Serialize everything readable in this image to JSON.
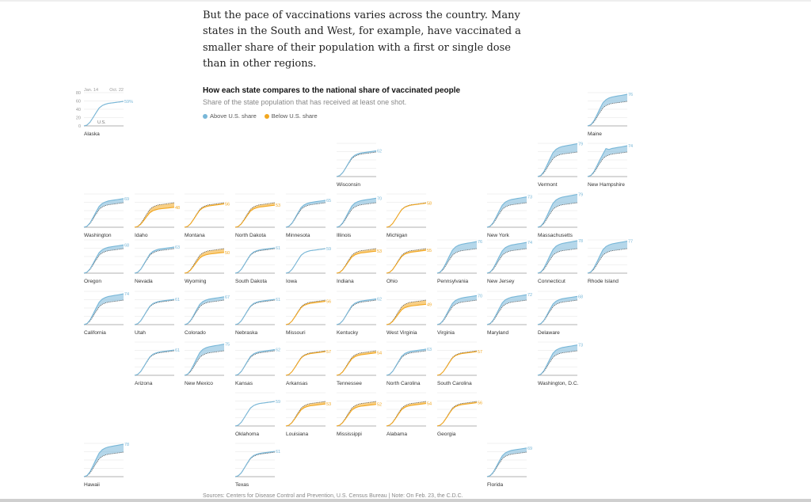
{
  "intro": {
    "text": "But the pace of vaccinations varies across the country. Many states in the South and West, for example, have vaccinated a smaller share of their population with a first or single dose than in other regions."
  },
  "legend": {
    "above_label": "Above U.S. share",
    "below_label": "Below U.S. share"
  },
  "source": "Sources: Centers for Disease Control and Prevention, U.S. Census Bureau | Note: On Feb. 23, the C.D.C.",
  "colors": {
    "above": "#78b7d8",
    "below": "#f2a720",
    "us_line": "#555555",
    "grid": "#e3e3e3",
    "axis": "#999999"
  },
  "chart_data": {
    "type": "area",
    "title": "How each state compares to the national share of vaccinated people",
    "subtitle": "Share of the state population that has received at least one shot.",
    "x_start_label": "Jan. 14",
    "x_end_label": "Oct. 22",
    "y_ticks": [
      "80",
      "60",
      "40",
      "20",
      "0"
    ],
    "ylim": [
      0,
      80
    ],
    "us_label": "U.S.",
    "us_final": 59,
    "us_final_label": "59%",
    "us_curve": [
      0,
      2,
      9,
      20,
      32,
      43,
      49,
      52,
      54,
      55,
      56,
      57,
      58,
      59
    ],
    "states": [
      {
        "name": "Alaska",
        "value": 59,
        "col": 0,
        "row": 0,
        "annotated": true
      },
      {
        "name": "Maine",
        "value": 76,
        "col": 10,
        "row": 0
      },
      {
        "name": "Wisconsin",
        "value": 62,
        "col": 5,
        "row": 1
      },
      {
        "name": "Vermont",
        "value": 79,
        "col": 9,
        "row": 1
      },
      {
        "name": "New Hampshire",
        "value": 74,
        "col": 10,
        "row": 1,
        "spike": true
      },
      {
        "name": "Washington",
        "value": 69,
        "col": 0,
        "row": 2
      },
      {
        "name": "Idaho",
        "value": 48,
        "col": 1,
        "row": 2
      },
      {
        "name": "Montana",
        "value": 56,
        "col": 2,
        "row": 2
      },
      {
        "name": "North Dakota",
        "value": 53,
        "col": 3,
        "row": 2
      },
      {
        "name": "Minnesota",
        "value": 65,
        "col": 4,
        "row": 2
      },
      {
        "name": "Illinois",
        "value": 70,
        "col": 5,
        "row": 2
      },
      {
        "name": "Michigan",
        "value": 58,
        "col": 6,
        "row": 2
      },
      {
        "name": "New York",
        "value": 73,
        "col": 8,
        "row": 2
      },
      {
        "name": "Massachusetts",
        "value": 79,
        "col": 9,
        "row": 2
      },
      {
        "name": "Oregon",
        "value": 68,
        "col": 0,
        "row": 3
      },
      {
        "name": "Nevada",
        "value": 63,
        "col": 1,
        "row": 3
      },
      {
        "name": "Wyoming",
        "value": 50,
        "col": 2,
        "row": 3
      },
      {
        "name": "South Dakota",
        "value": 61,
        "col": 3,
        "row": 3
      },
      {
        "name": "Iowa",
        "value": 59,
        "col": 4,
        "row": 3
      },
      {
        "name": "Indiana",
        "value": 53,
        "col": 5,
        "row": 3
      },
      {
        "name": "Ohio",
        "value": 55,
        "col": 6,
        "row": 3
      },
      {
        "name": "Pennsylvania",
        "value": 76,
        "col": 7,
        "row": 3
      },
      {
        "name": "New Jersey",
        "value": 74,
        "col": 8,
        "row": 3
      },
      {
        "name": "Connecticut",
        "value": 78,
        "col": 9,
        "row": 3
      },
      {
        "name": "Rhode Island",
        "value": 77,
        "col": 10,
        "row": 3
      },
      {
        "name": "California",
        "value": 74,
        "col": 0,
        "row": 4
      },
      {
        "name": "Utah",
        "value": 61,
        "col": 1,
        "row": 4
      },
      {
        "name": "Colorado",
        "value": 67,
        "col": 2,
        "row": 4
      },
      {
        "name": "Nebraska",
        "value": 61,
        "col": 3,
        "row": 4
      },
      {
        "name": "Missouri",
        "value": 56,
        "col": 4,
        "row": 4
      },
      {
        "name": "Kentucky",
        "value": 62,
        "col": 5,
        "row": 4
      },
      {
        "name": "West Virginia",
        "value": 49,
        "col": 6,
        "row": 4
      },
      {
        "name": "Virginia",
        "value": 70,
        "col": 7,
        "row": 4
      },
      {
        "name": "Maryland",
        "value": 72,
        "col": 8,
        "row": 4
      },
      {
        "name": "Delaware",
        "value": 68,
        "col": 9,
        "row": 4
      },
      {
        "name": "Arizona",
        "value": 61,
        "col": 1,
        "row": 5
      },
      {
        "name": "New Mexico",
        "value": 75,
        "col": 2,
        "row": 5
      },
      {
        "name": "Kansas",
        "value": 62,
        "col": 3,
        "row": 5
      },
      {
        "name": "Arkansas",
        "value": 57,
        "col": 4,
        "row": 5
      },
      {
        "name": "Tennessee",
        "value": 54,
        "col": 5,
        "row": 5
      },
      {
        "name": "North Carolina",
        "value": 63,
        "col": 6,
        "row": 5
      },
      {
        "name": "South Carolina",
        "value": 57,
        "col": 7,
        "row": 5
      },
      {
        "name": "Washington, D.C.",
        "value": 73,
        "col": 9,
        "row": 5
      },
      {
        "name": "Oklahoma",
        "value": 59,
        "col": 3,
        "row": 6
      },
      {
        "name": "Louisiana",
        "value": 53,
        "col": 4,
        "row": 6
      },
      {
        "name": "Mississippi",
        "value": 52,
        "col": 5,
        "row": 6
      },
      {
        "name": "Alabama",
        "value": 54,
        "col": 6,
        "row": 6
      },
      {
        "name": "Georgia",
        "value": 56,
        "col": 7,
        "row": 6
      },
      {
        "name": "Hawaii",
        "value": 78,
        "col": 0,
        "row": 7
      },
      {
        "name": "Texas",
        "value": 61,
        "col": 3,
        "row": 7
      },
      {
        "name": "Florida",
        "value": 69,
        "col": 8,
        "row": 7
      }
    ]
  }
}
